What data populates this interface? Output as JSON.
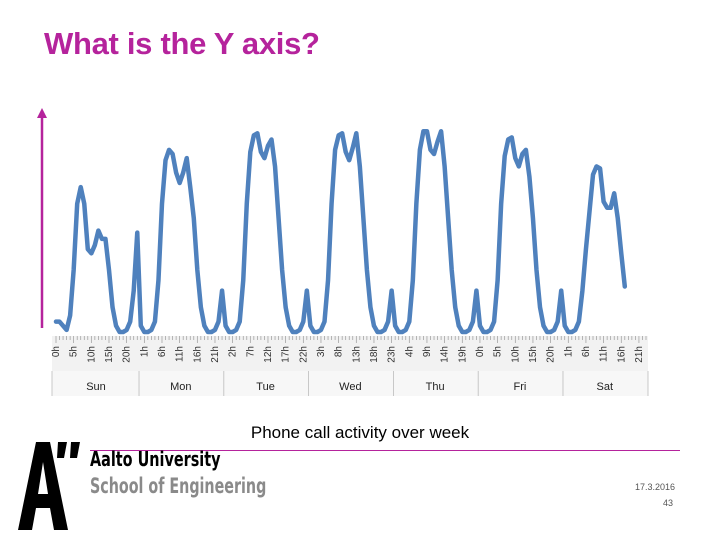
{
  "slide": {
    "title": "What is the Y axis?",
    "caption": "Phone call activity over week",
    "date": "17.3.2016",
    "page_number": "43"
  },
  "brand": {
    "university": "Aalto University",
    "school": "School of Engineering",
    "accent_color": "#b5239c",
    "line_color": "#4f81bd"
  },
  "chart_data": {
    "type": "line",
    "title": "",
    "xlabel": "",
    "ylabel": "",
    "days": [
      "Sun",
      "Mon",
      "Tue",
      "Wed",
      "Thu",
      "Fri",
      "Sat"
    ],
    "hour_tick_labels": [
      "0h",
      "5h",
      "10h",
      "15h",
      "20h",
      "1h",
      "6h",
      "11h",
      "16h",
      "21h",
      "2h",
      "7h",
      "12h",
      "17h",
      "22h",
      "3h",
      "8h",
      "13h",
      "18h",
      "23h",
      "4h",
      "9h",
      "14h",
      "19h",
      "0h",
      "5h",
      "10h",
      "15h",
      "20h",
      "1h",
      "6h",
      "11h",
      "16h",
      "21h"
    ],
    "series": [
      {
        "values": [
          0.05,
          0.05,
          0.03,
          0.01,
          0.08,
          0.3,
          0.62,
          0.7,
          0.62,
          0.4,
          0.38,
          0.42,
          0.49,
          0.45,
          0.45,
          0.3,
          0.12,
          0.03,
          0.0,
          0.0,
          0.01,
          0.05,
          0.2,
          0.48,
          0.03,
          0.0,
          0.0,
          0.01,
          0.05,
          0.25,
          0.62,
          0.83,
          0.88,
          0.86,
          0.77,
          0.72,
          0.77,
          0.84,
          0.7,
          0.55,
          0.3,
          0.12,
          0.03,
          0.0,
          0.0,
          0.01,
          0.05,
          0.2,
          0.03,
          0.0,
          0.0,
          0.01,
          0.05,
          0.25,
          0.62,
          0.87,
          0.95,
          0.96,
          0.87,
          0.84,
          0.9,
          0.93,
          0.8,
          0.55,
          0.3,
          0.12,
          0.03,
          0.0,
          0.0,
          0.01,
          0.05,
          0.2,
          0.03,
          0.0,
          0.0,
          0.01,
          0.05,
          0.25,
          0.62,
          0.88,
          0.95,
          0.96,
          0.87,
          0.83,
          0.89,
          0.96,
          0.8,
          0.55,
          0.3,
          0.12,
          0.03,
          0.0,
          0.0,
          0.01,
          0.05,
          0.2,
          0.03,
          0.0,
          0.0,
          0.01,
          0.05,
          0.25,
          0.62,
          0.88,
          0.97,
          0.97,
          0.88,
          0.86,
          0.92,
          0.97,
          0.8,
          0.55,
          0.3,
          0.12,
          0.03,
          0.0,
          0.0,
          0.01,
          0.05,
          0.2,
          0.03,
          0.0,
          0.0,
          0.01,
          0.05,
          0.25,
          0.62,
          0.85,
          0.93,
          0.94,
          0.84,
          0.8,
          0.86,
          0.88,
          0.75,
          0.55,
          0.3,
          0.12,
          0.03,
          0.0,
          0.0,
          0.01,
          0.05,
          0.2,
          0.03,
          0.0,
          0.0,
          0.01,
          0.05,
          0.2,
          0.4,
          0.58,
          0.76,
          0.8,
          0.79,
          0.63,
          0.6,
          0.6,
          0.67,
          0.55,
          0.38,
          0.22
        ]
      }
    ]
  }
}
